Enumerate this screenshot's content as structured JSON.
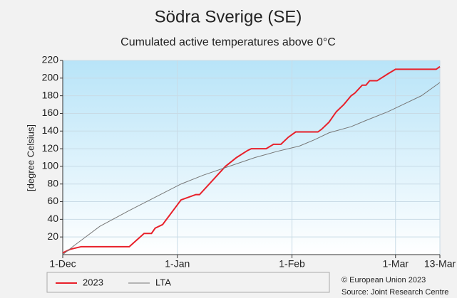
{
  "chart_data": {
    "type": "line",
    "title": "Södra Sverige (SE)",
    "subtitle": "Cumulated active temperatures above 0°C",
    "y_label": "[degree Celsius]",
    "xlim": [
      0,
      102
    ],
    "xticks": [
      {
        "value": 0,
        "label": "1-Dec"
      },
      {
        "value": 31,
        "label": "1-Jan"
      },
      {
        "value": 62,
        "label": "1-Feb"
      },
      {
        "value": 90,
        "label": "1-Mar"
      },
      {
        "value": 102,
        "label": "13-Mar"
      }
    ],
    "ylim": [
      0,
      220
    ],
    "yticks": [
      20,
      40,
      60,
      80,
      100,
      120,
      140,
      160,
      180,
      200,
      220
    ],
    "grid": true,
    "legend": "bottom",
    "series": [
      {
        "name": "2023",
        "color": "#e8202a",
        "x": [
          0,
          2,
          4,
          5,
          18,
          22,
          24,
          25,
          27,
          32,
          36,
          37,
          44,
          47,
          50,
          51,
          55,
          57,
          59,
          61,
          63,
          69,
          70,
          72,
          74,
          76,
          78,
          79,
          81,
          82,
          83,
          85,
          88,
          90,
          101,
          102
        ],
        "values": [
          2,
          6,
          8,
          9,
          9,
          24,
          24,
          30,
          34,
          62,
          68,
          68,
          100,
          110,
          118,
          120,
          120,
          125,
          125,
          133,
          139,
          139,
          142,
          150,
          162,
          170,
          180,
          183,
          192,
          192,
          197,
          197,
          205,
          210,
          210,
          213
        ]
      },
      {
        "name": "LTA",
        "color": "#777777",
        "x": [
          0,
          3,
          10,
          18,
          25,
          32,
          38,
          45,
          52,
          58,
          64,
          68,
          72,
          78,
          82,
          88,
          93,
          97,
          102
        ],
        "values": [
          0,
          10,
          32,
          50,
          65,
          80,
          90,
          100,
          110,
          117,
          123,
          130,
          138,
          145,
          152,
          162,
          172,
          180,
          195
        ]
      }
    ],
    "footer": [
      "© European Union 2023",
      "Source: Joint Research Centre"
    ]
  }
}
